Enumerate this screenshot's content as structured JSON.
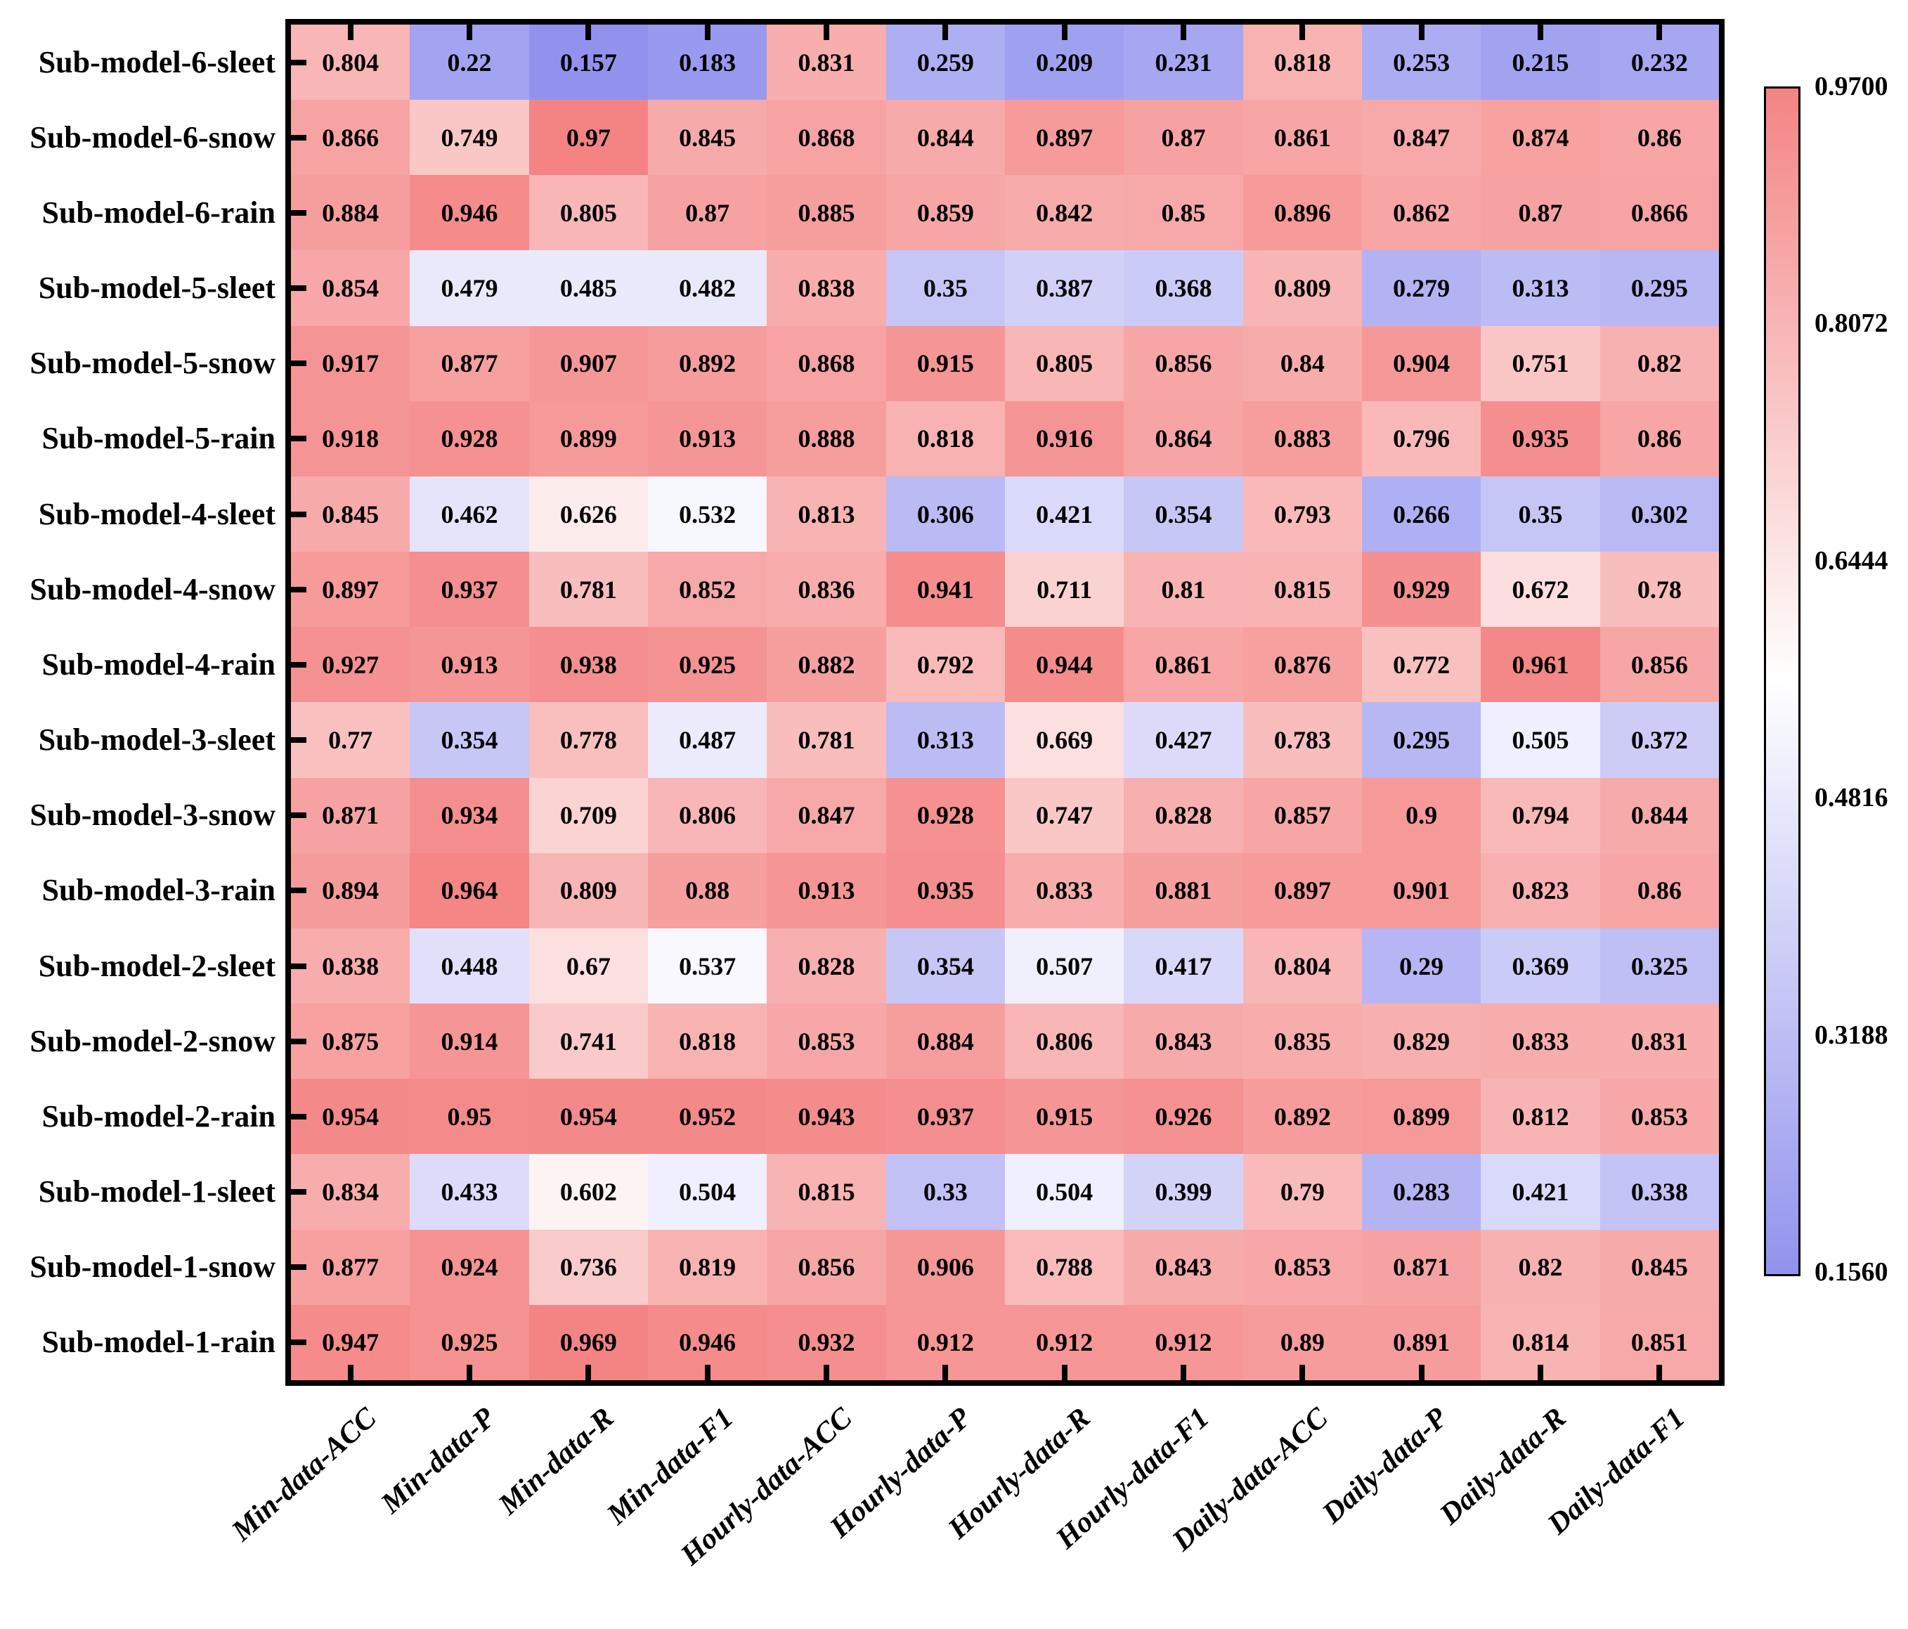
{
  "chart_data": {
    "type": "heatmap",
    "rows": [
      "Sub-model-6-sleet",
      "Sub-model-6-snow",
      "Sub-model-6-rain",
      "Sub-model-5-sleet",
      "Sub-model-5-snow",
      "Sub-model-5-rain",
      "Sub-model-4-sleet",
      "Sub-model-4-snow",
      "Sub-model-4-rain",
      "Sub-model-3-sleet",
      "Sub-model-3-snow",
      "Sub-model-3-rain",
      "Sub-model-2-sleet",
      "Sub-model-2-snow",
      "Sub-model-2-rain",
      "Sub-model-1-sleet",
      "Sub-model-1-snow",
      "Sub-model-1-rain"
    ],
    "columns": [
      "Min-data-ACC",
      "Min-data-P",
      "Min-data-R",
      "Min-data-F1",
      "Hourly-data-ACC",
      "Hourly-data-P",
      "Hourly-data-R",
      "Hourly-data-F1",
      "Daily-data-ACC",
      "Daily-data-P",
      "Daily-data-R",
      "Daily-data-F1"
    ],
    "values": [
      [
        0.804,
        0.22,
        0.157,
        0.183,
        0.831,
        0.259,
        0.209,
        0.231,
        0.818,
        0.253,
        0.215,
        0.232
      ],
      [
        0.866,
        0.749,
        0.97,
        0.845,
        0.868,
        0.844,
        0.897,
        0.87,
        0.861,
        0.847,
        0.874,
        0.86
      ],
      [
        0.884,
        0.946,
        0.805,
        0.87,
        0.885,
        0.859,
        0.842,
        0.85,
        0.896,
        0.862,
        0.87,
        0.866
      ],
      [
        0.854,
        0.479,
        0.485,
        0.482,
        0.838,
        0.35,
        0.387,
        0.368,
        0.809,
        0.279,
        0.313,
        0.295
      ],
      [
        0.917,
        0.877,
        0.907,
        0.892,
        0.868,
        0.915,
        0.805,
        0.856,
        0.84,
        0.904,
        0.751,
        0.82
      ],
      [
        0.918,
        0.928,
        0.899,
        0.913,
        0.888,
        0.818,
        0.916,
        0.864,
        0.883,
        0.796,
        0.935,
        0.86
      ],
      [
        0.845,
        0.462,
        0.626,
        0.532,
        0.813,
        0.306,
        0.421,
        0.354,
        0.793,
        0.266,
        0.35,
        0.302
      ],
      [
        0.897,
        0.937,
        0.781,
        0.852,
        0.836,
        0.941,
        0.711,
        0.81,
        0.815,
        0.929,
        0.672,
        0.78
      ],
      [
        0.927,
        0.913,
        0.938,
        0.925,
        0.882,
        0.792,
        0.944,
        0.861,
        0.876,
        0.772,
        0.961,
        0.856
      ],
      [
        0.77,
        0.354,
        0.778,
        0.487,
        0.781,
        0.313,
        0.669,
        0.427,
        0.783,
        0.295,
        0.505,
        0.372
      ],
      [
        0.871,
        0.934,
        0.709,
        0.806,
        0.847,
        0.928,
        0.747,
        0.828,
        0.857,
        0.9,
        0.794,
        0.844
      ],
      [
        0.894,
        0.964,
        0.809,
        0.88,
        0.913,
        0.935,
        0.833,
        0.881,
        0.897,
        0.901,
        0.823,
        0.86
      ],
      [
        0.838,
        0.448,
        0.67,
        0.537,
        0.828,
        0.354,
        0.507,
        0.417,
        0.804,
        0.29,
        0.369,
        0.325
      ],
      [
        0.875,
        0.914,
        0.741,
        0.818,
        0.853,
        0.884,
        0.806,
        0.843,
        0.835,
        0.829,
        0.833,
        0.831
      ],
      [
        0.954,
        0.95,
        0.954,
        0.952,
        0.943,
        0.937,
        0.915,
        0.926,
        0.892,
        0.899,
        0.812,
        0.853
      ],
      [
        0.834,
        0.433,
        0.602,
        0.504,
        0.815,
        0.33,
        0.504,
        0.399,
        0.79,
        0.283,
        0.421,
        0.338
      ],
      [
        0.877,
        0.924,
        0.736,
        0.819,
        0.856,
        0.906,
        0.788,
        0.843,
        0.853,
        0.871,
        0.82,
        0.845
      ],
      [
        0.947,
        0.925,
        0.969,
        0.946,
        0.932,
        0.912,
        0.912,
        0.912,
        0.89,
        0.891,
        0.814,
        0.851
      ]
    ],
    "vmin": 0.156,
    "vmax": 0.97,
    "colorbar_ticks": [
      "0.9700",
      "0.8072",
      "0.6444",
      "0.4816",
      "0.3188",
      "0.1560"
    ],
    "colors": {
      "low": "#9292ee",
      "mid": "#ffffff",
      "high": "#f48484"
    },
    "layout": {
      "grid": false,
      "colorbar_position": "right",
      "x_tick_rotation": -42
    }
  }
}
